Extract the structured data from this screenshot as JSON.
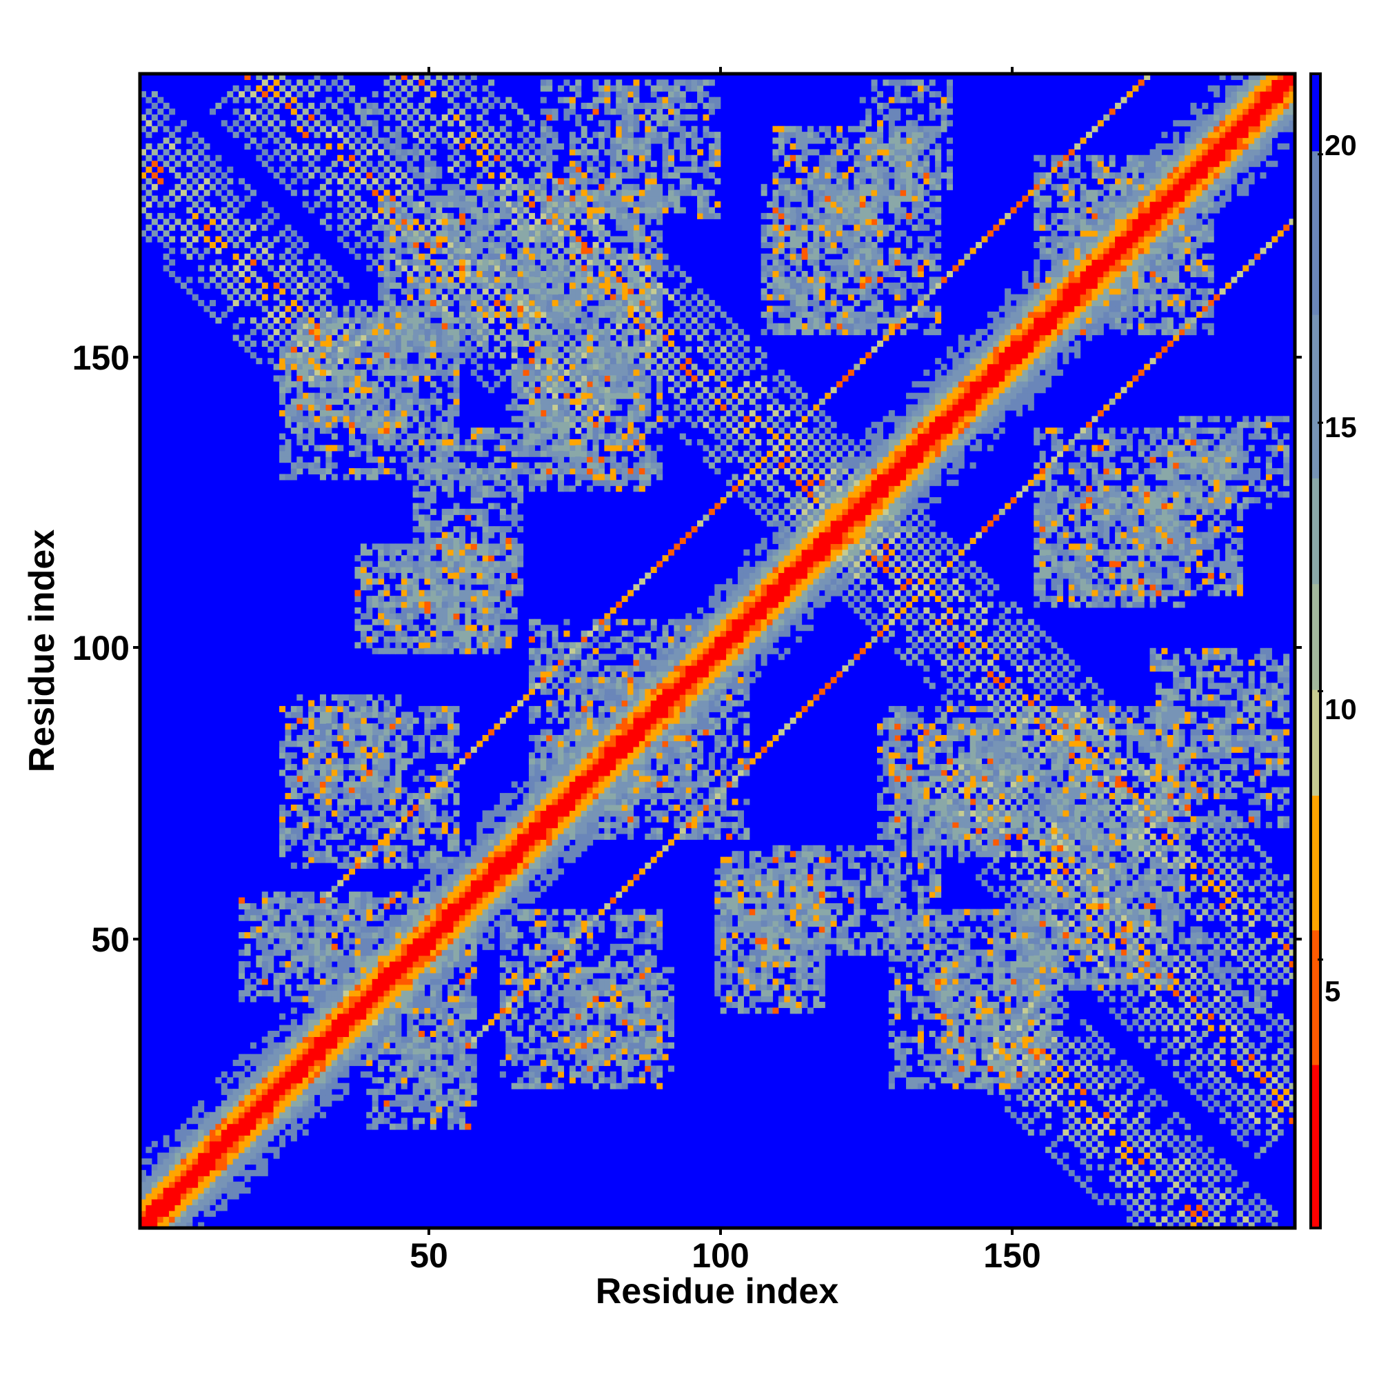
{
  "chart_data": {
    "type": "heatmap",
    "title": "",
    "xlabel": "Residue index",
    "ylabel": "Residue index",
    "xlim": [
      1,
      199
    ],
    "ylim": [
      1,
      199
    ],
    "n_residues": 199,
    "xticks": [
      50,
      100,
      150
    ],
    "yticks": [
      50,
      100,
      150
    ],
    "x_tick_labels": [
      "50",
      "100",
      "150"
    ],
    "y_tick_labels": [
      "50",
      "100",
      "150"
    ],
    "colorbar": {
      "ticks": [
        5,
        10,
        15,
        20
      ],
      "tick_labels": [
        "5",
        "10",
        "15",
        "20"
      ],
      "range": [
        0,
        21.5
      ],
      "colors": [
        {
          "max": 3,
          "color": "#ff0000"
        },
        {
          "max": 5.5,
          "color": "#ff5a00"
        },
        {
          "max": 8,
          "color": "#ffa500"
        },
        {
          "max": 10,
          "color": "#c6cc92"
        },
        {
          "max": 12,
          "color": "#a2b79c"
        },
        {
          "max": 14,
          "color": "#8aa8a8"
        },
        {
          "max": 17,
          "color": "#7794b6"
        },
        {
          "max": 20,
          "color": "#6a86b9"
        },
        {
          "max": 999,
          "color": "#0000ff"
        }
      ]
    },
    "background_color": "#0000ff",
    "bands": [
      {
        "type": "anti",
        "sum": 75,
        "from": 36,
        "to": 40
      },
      {
        "type": "parallel",
        "offset": 25,
        "from": 62,
        "to": 200
      },
      {
        "type": "anti",
        "sum": 245,
        "from": 115,
        "to": 200
      },
      {
        "type": "anti",
        "sum": 220,
        "from": 140,
        "to": 200
      },
      {
        "type": "anti",
        "sum": 185,
        "from": 150,
        "to": 200
      }
    ],
    "blocks": [
      {
        "x": [
          22,
          50
        ],
        "y": [
          45,
          58
        ]
      },
      {
        "x": [
          40,
          58
        ],
        "y": [
          18,
          40
        ]
      },
      {
        "x": [
          28,
          45
        ],
        "y": [
          75,
          92
        ]
      },
      {
        "x": [
          42,
          62
        ],
        "y": [
          100,
          118
        ]
      },
      {
        "x": [
          25,
          55
        ],
        "y": [
          130,
          158
        ]
      },
      {
        "x": [
          63,
          90
        ],
        "y": [
          25,
          55
        ]
      },
      {
        "x": [
          68,
          95
        ],
        "y": [
          75,
          105
        ]
      },
      {
        "x": [
          100,
          118
        ],
        "y": [
          38,
          65
        ]
      },
      {
        "x": [
          108,
          138
        ],
        "y": [
          48,
          66
        ]
      },
      {
        "x": [
          138,
          158
        ],
        "y": [
          28,
          48
        ]
      },
      {
        "x": [
          128,
          150
        ],
        "y": [
          68,
          88
        ]
      },
      {
        "x": [
          152,
          178
        ],
        "y": [
          42,
          60
        ]
      },
      {
        "x": [
          158,
          180
        ],
        "y": [
          58,
          90
        ]
      },
      {
        "x": [
          175,
          198
        ],
        "y": [
          82,
          100
        ]
      },
      {
        "x": [
          155,
          180
        ],
        "y": [
          108,
          128
        ]
      },
      {
        "x": [
          178,
          198
        ],
        "y": [
          125,
          140
        ]
      },
      {
        "x": [
          110,
          138
        ],
        "y": [
          155,
          190
        ]
      },
      {
        "x": [
          65,
          90
        ],
        "y": [
          130,
          165
        ]
      },
      {
        "x": [
          70,
          85
        ],
        "y": [
          176,
          198
        ]
      },
      {
        "x": [
          155,
          180
        ],
        "y": [
          160,
          185
        ]
      }
    ]
  }
}
